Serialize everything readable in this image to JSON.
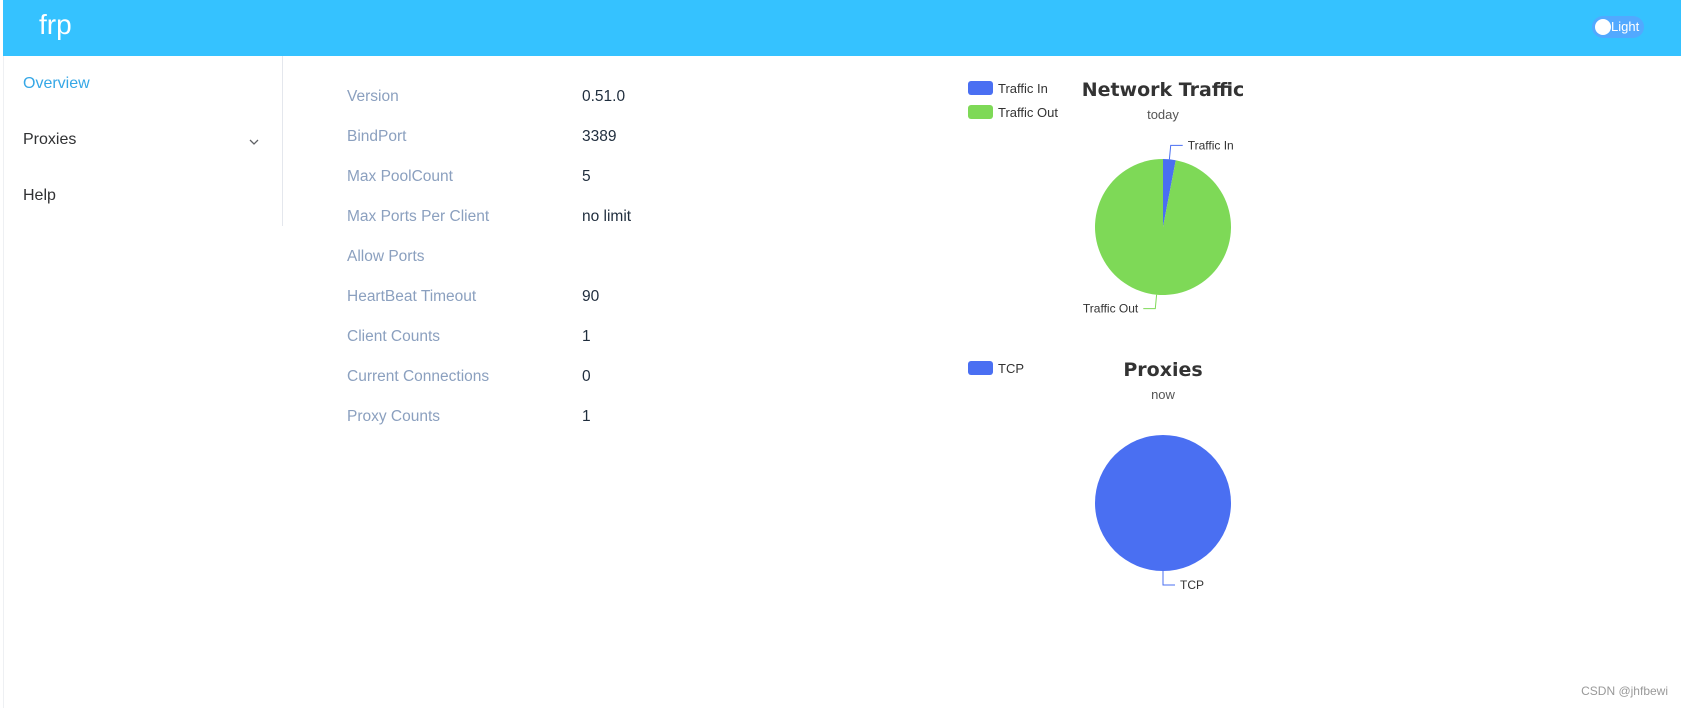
{
  "header": {
    "brand": "frp",
    "theme_label": "Light"
  },
  "sidebar": {
    "items": [
      {
        "label": "Overview",
        "active": true
      },
      {
        "label": "Proxies",
        "active": false,
        "expandable": true
      },
      {
        "label": "Help",
        "active": false
      }
    ]
  },
  "server_info": [
    {
      "label": "Version",
      "value": "0.51.0"
    },
    {
      "label": "BindPort",
      "value": "3389"
    },
    {
      "label": "Max PoolCount",
      "value": "5"
    },
    {
      "label": "Max Ports Per Client",
      "value": "no limit"
    },
    {
      "label": "Allow Ports",
      "value": ""
    },
    {
      "label": "HeartBeat Timeout",
      "value": "90"
    },
    {
      "label": "Client Counts",
      "value": "1"
    },
    {
      "label": "Current Connections",
      "value": "0"
    },
    {
      "label": "Proxy Counts",
      "value": "1"
    }
  ],
  "colors": {
    "header": "#35c2ff",
    "active": "#35a7e6",
    "blue_series": "#4a6ff2",
    "green_series": "#7ed957"
  },
  "chart_data": [
    {
      "type": "pie",
      "title": "Network Traffic",
      "subtitle": "today",
      "legend": [
        "Traffic In",
        "Traffic Out"
      ],
      "slices": [
        {
          "name": "Traffic In",
          "value": 3,
          "color": "#4a6ff2"
        },
        {
          "name": "Traffic Out",
          "value": 97,
          "color": "#7ed957"
        }
      ]
    },
    {
      "type": "pie",
      "title": "Proxies",
      "subtitle": "now",
      "legend": [
        "TCP"
      ],
      "slices": [
        {
          "name": "TCP",
          "value": 1,
          "color": "#4a6ff2"
        }
      ]
    }
  ],
  "watermark": "CSDN @jhfbewi"
}
